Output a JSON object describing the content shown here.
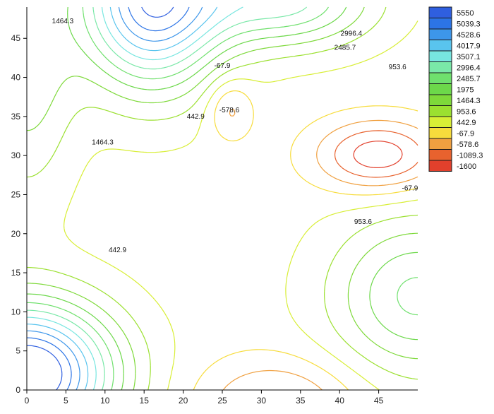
{
  "chart_data": {
    "type": "contour",
    "title": "",
    "xlabel": "",
    "ylabel": "",
    "xlim": [
      0,
      50
    ],
    "ylim": [
      0,
      49
    ],
    "x_ticks": [
      "0",
      "5",
      "10",
      "15",
      "20",
      "25",
      "30",
      "35",
      "40",
      "45"
    ],
    "y_ticks": [
      "0",
      "5",
      "10",
      "15",
      "20",
      "25",
      "30",
      "35",
      "40",
      "45"
    ],
    "legend": {
      "placement": "right",
      "levels": [
        {
          "label": "5550",
          "color": "#2f5fe0"
        },
        {
          "label": "5039.3",
          "color": "#2c74e6"
        },
        {
          "label": "4528.6",
          "color": "#3d96ea"
        },
        {
          "label": "4017.9",
          "color": "#59c4ee"
        },
        {
          "label": "3507.1",
          "color": "#77e6e0"
        },
        {
          "label": "2996.4",
          "color": "#7ae8a8"
        },
        {
          "label": "2485.7",
          "color": "#6fe06d"
        },
        {
          "label": "1975",
          "color": "#6cd84a"
        },
        {
          "label": "1464.3",
          "color": "#7ed93a"
        },
        {
          "label": "953.6",
          "color": "#9be030"
        },
        {
          "label": "442.9",
          "color": "#d8ee36"
        },
        {
          "label": "-67.9",
          "color": "#f7dc3c"
        },
        {
          "label": "-578.6",
          "color": "#f0a040"
        },
        {
          "label": "-1089.3",
          "color": "#e8622e"
        },
        {
          "label": "-1600",
          "color": "#e2402c"
        }
      ]
    },
    "contour_labels": [
      {
        "text": "1464.3",
        "x": 4.6,
        "y": 47.2
      },
      {
        "text": "2996.4",
        "x": 41.5,
        "y": 45.6
      },
      {
        "text": "2485.7",
        "x": 40.7,
        "y": 43.8
      },
      {
        "text": "953.6",
        "x": 47.4,
        "y": 41.3
      },
      {
        "text": "-67.9",
        "x": 25.0,
        "y": 41.5
      },
      {
        "text": "-578.6",
        "x": 25.9,
        "y": 35.8
      },
      {
        "text": "442.9",
        "x": 21.6,
        "y": 35.0
      },
      {
        "text": "1464.3",
        "x": 9.7,
        "y": 31.7
      },
      {
        "text": "-67.9",
        "x": 49.0,
        "y": 25.8
      },
      {
        "text": "953.6",
        "x": 43.0,
        "y": 21.5
      },
      {
        "text": "442.9",
        "x": 11.6,
        "y": 17.9
      }
    ]
  }
}
